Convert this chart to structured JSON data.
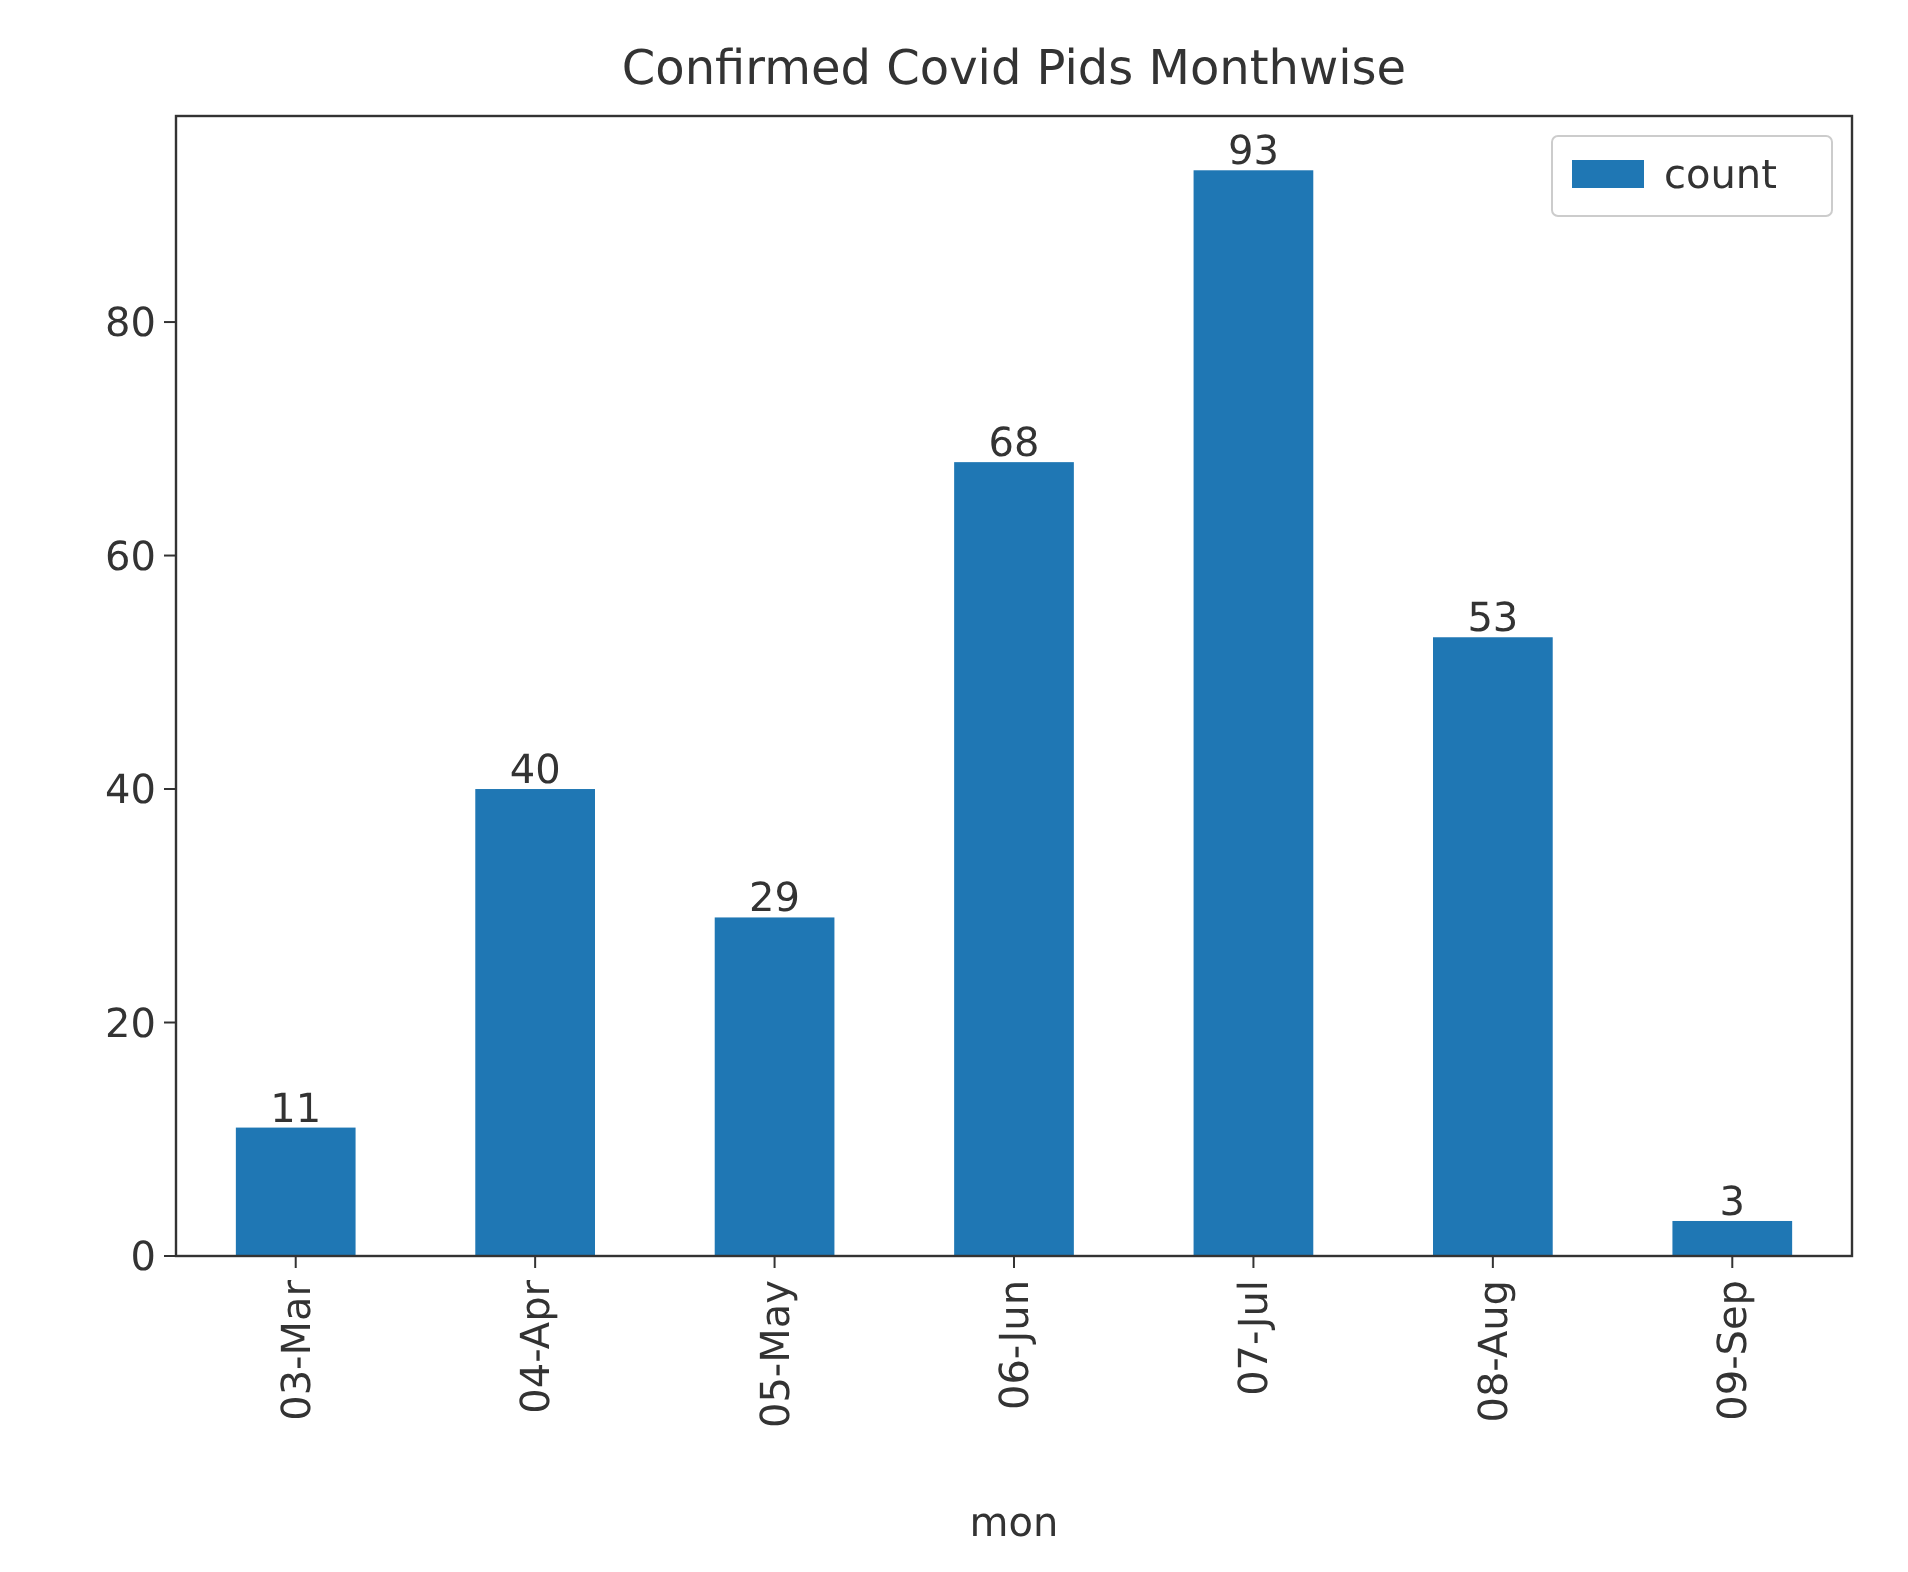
{
  "chart_data": {
    "type": "bar",
    "title": "Confirmed Covid Pids Monthwise",
    "xlabel": "mon",
    "categories": [
      "03-Mar",
      "04-Apr",
      "05-May",
      "06-Jun",
      "07-Jul",
      "08-Aug",
      "09-Sep"
    ],
    "series": [
      {
        "name": "count",
        "color": "#1f77b4",
        "values": [
          11,
          40,
          29,
          68,
          93,
          53,
          3
        ]
      }
    ],
    "ylim": [
      0,
      97.65
    ],
    "yticks": [
      0,
      20,
      40,
      60,
      80
    ],
    "data_labels": true,
    "legend": "top right",
    "grid": false
  }
}
